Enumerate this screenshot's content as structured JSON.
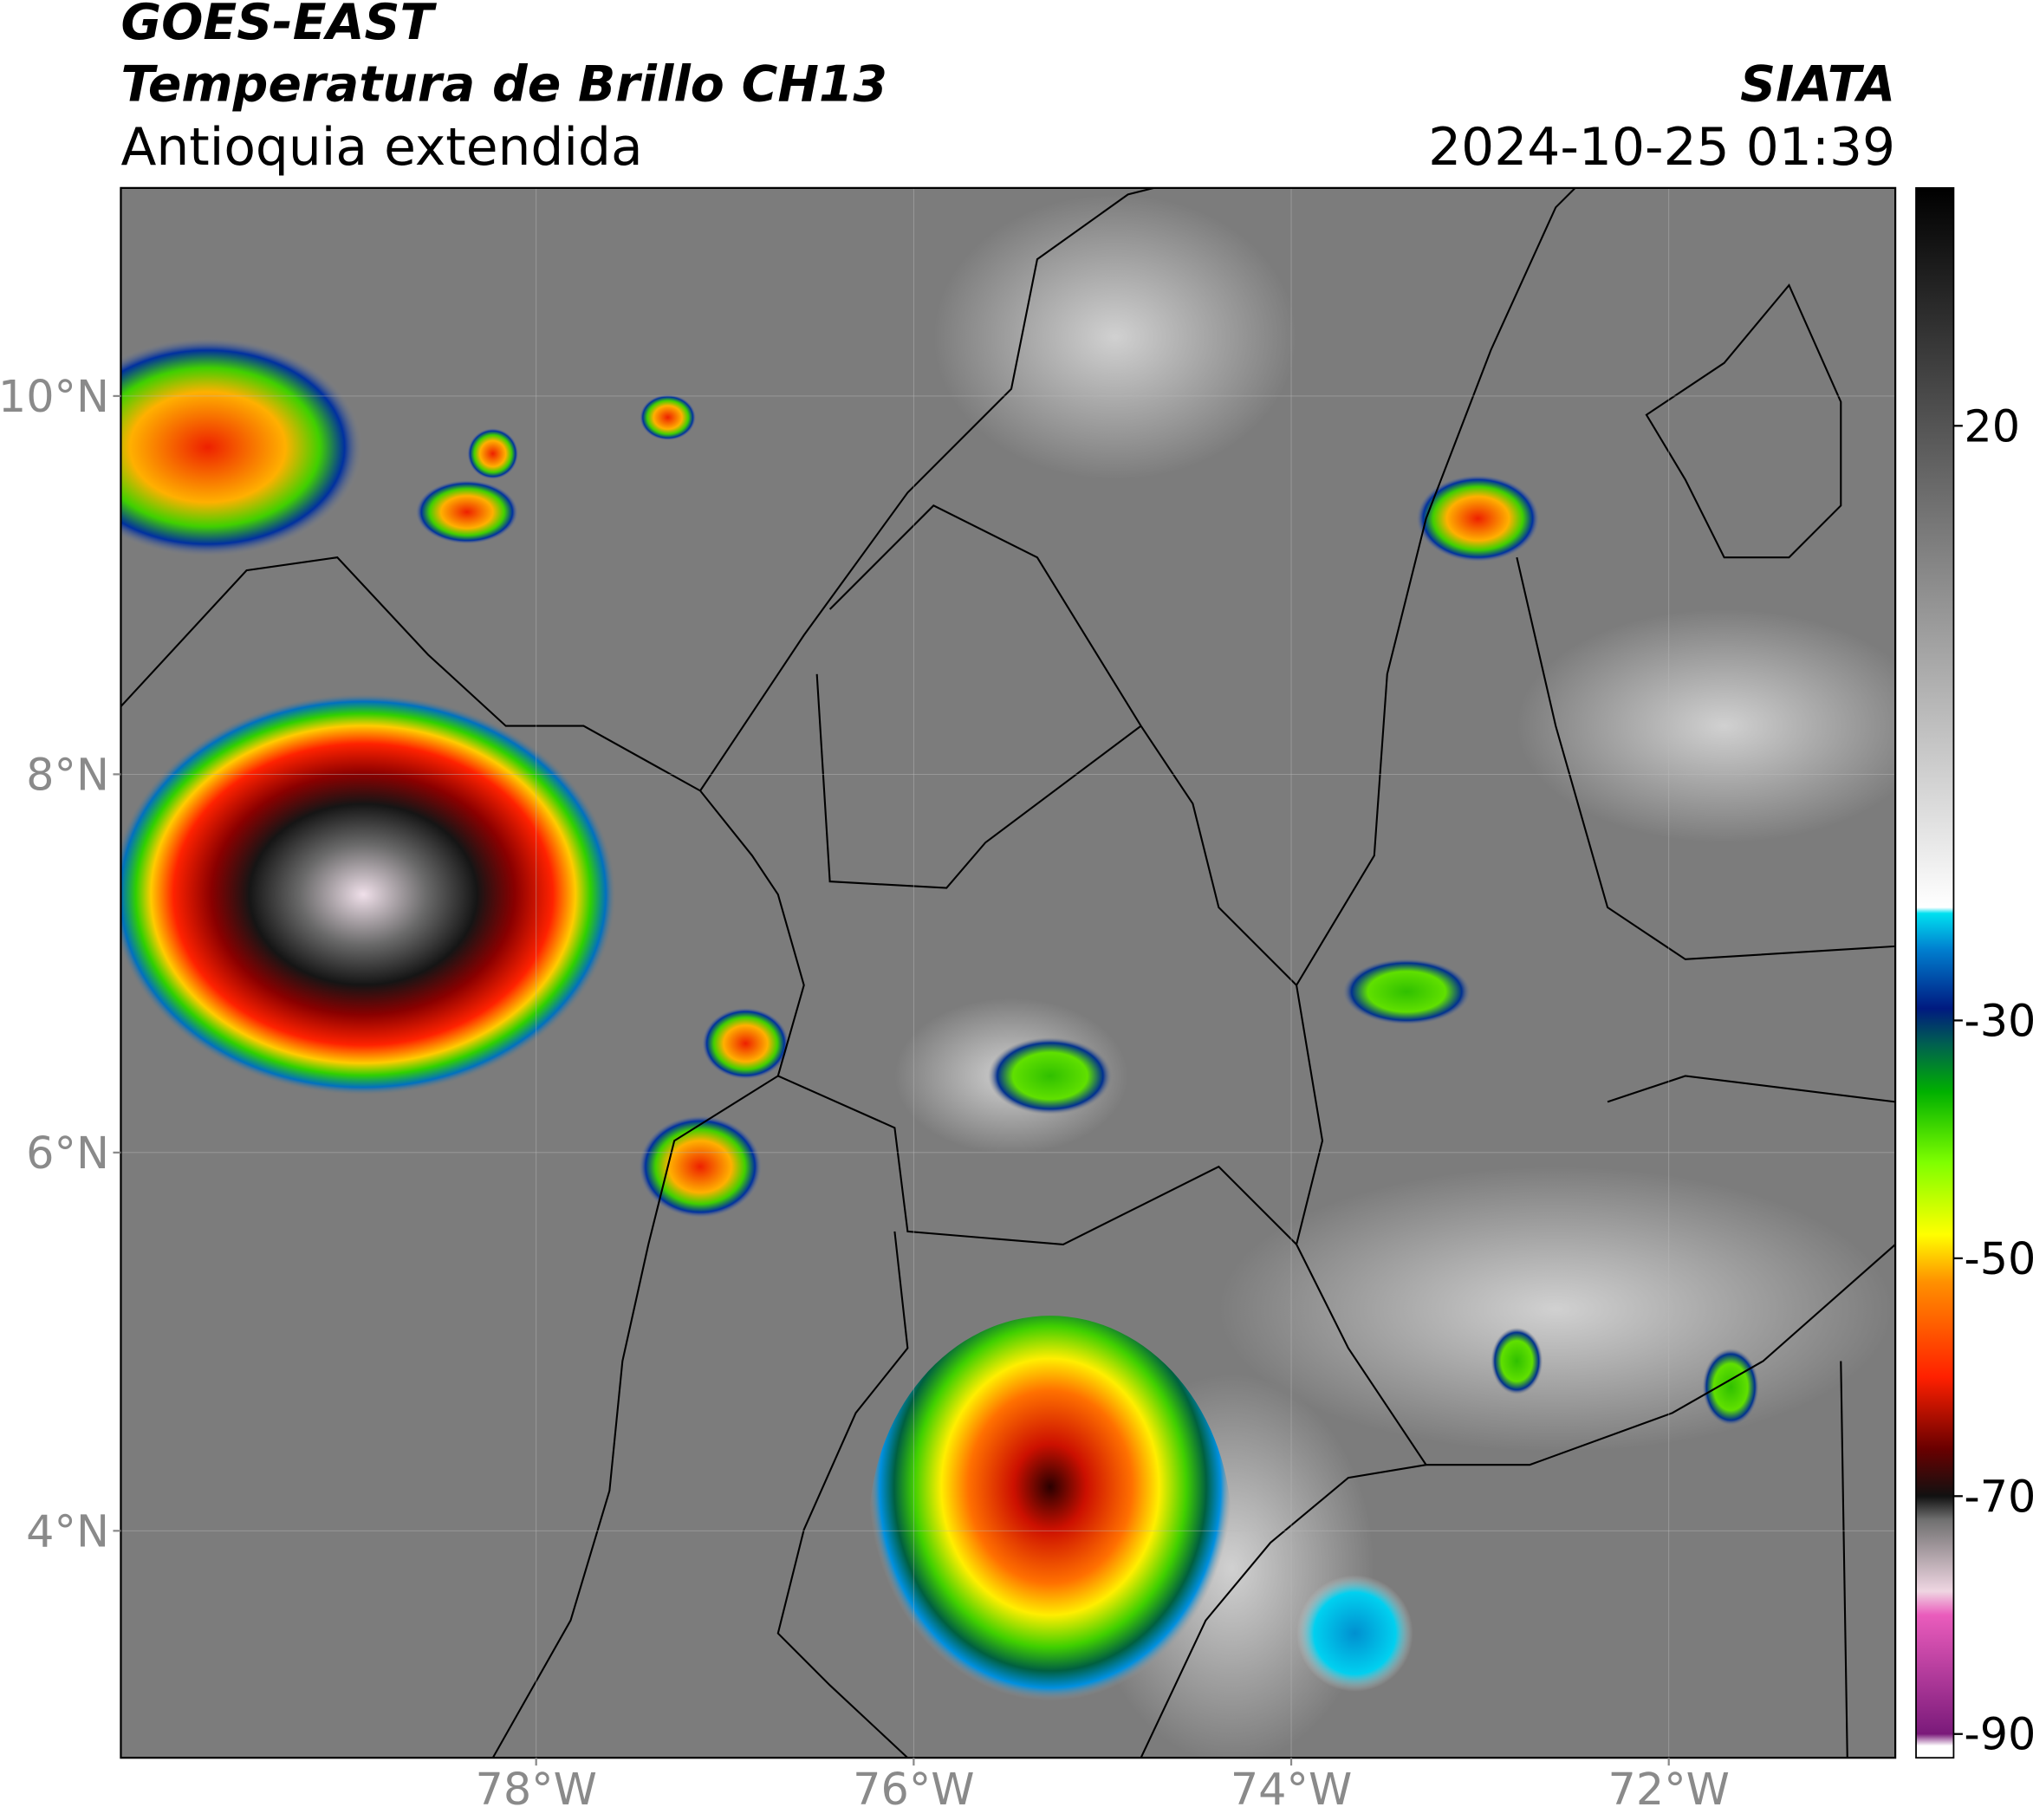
{
  "header": {
    "title": "GOES-EAST",
    "subtitle": "Temperatura de Brillo CH13",
    "region": "Antioquia extendida",
    "agency": "SIATA",
    "datetime": "2024-10-25 01:39"
  },
  "map": {
    "lonlim": [
      -80.2,
      -70.8
    ],
    "latlim": [
      2.8,
      11.1
    ],
    "lonticks": [
      {
        "value": -78,
        "label": "78°W"
      },
      {
        "value": -76,
        "label": "76°W"
      },
      {
        "value": -74,
        "label": "74°W"
      },
      {
        "value": -72,
        "label": "72°W"
      }
    ],
    "latticks": [
      {
        "value": 10,
        "label": "10°N"
      },
      {
        "value": 8,
        "label": "8°N"
      },
      {
        "value": 6,
        "label": "6°N"
      },
      {
        "value": 4,
        "label": "4°N"
      }
    ],
    "grid": true
  },
  "colorbar": {
    "lim": [
      -92,
      40
    ],
    "ticks": [
      20,
      -30,
      -50,
      -70,
      -90
    ],
    "colormap": [
      {
        "value": -92,
        "color": "#ffffff"
      },
      {
        "value": -91,
        "color": "#ffffff"
      },
      {
        "value": -90,
        "color": "#7a1a7a"
      },
      {
        "value": -80,
        "color": "#ea5cbc"
      },
      {
        "value": -78,
        "color": "#efd6e2"
      },
      {
        "value": -72,
        "color": "#707070"
      },
      {
        "value": -70,
        "color": "#111111"
      },
      {
        "value": -66,
        "color": "#6a0000"
      },
      {
        "value": -60,
        "color": "#ff2000"
      },
      {
        "value": -52,
        "color": "#ff9000"
      },
      {
        "value": -48,
        "color": "#ffff00"
      },
      {
        "value": -42,
        "color": "#80ff00"
      },
      {
        "value": -36,
        "color": "#00b000"
      },
      {
        "value": -32,
        "color": "#006050"
      },
      {
        "value": -29,
        "color": "#001a80"
      },
      {
        "value": -24,
        "color": "#0080d0"
      },
      {
        "value": -21,
        "color": "#00e0f0"
      },
      {
        "value": -20.5,
        "color": "#ffffff"
      },
      {
        "value": 40,
        "color": "#000000"
      }
    ]
  }
}
